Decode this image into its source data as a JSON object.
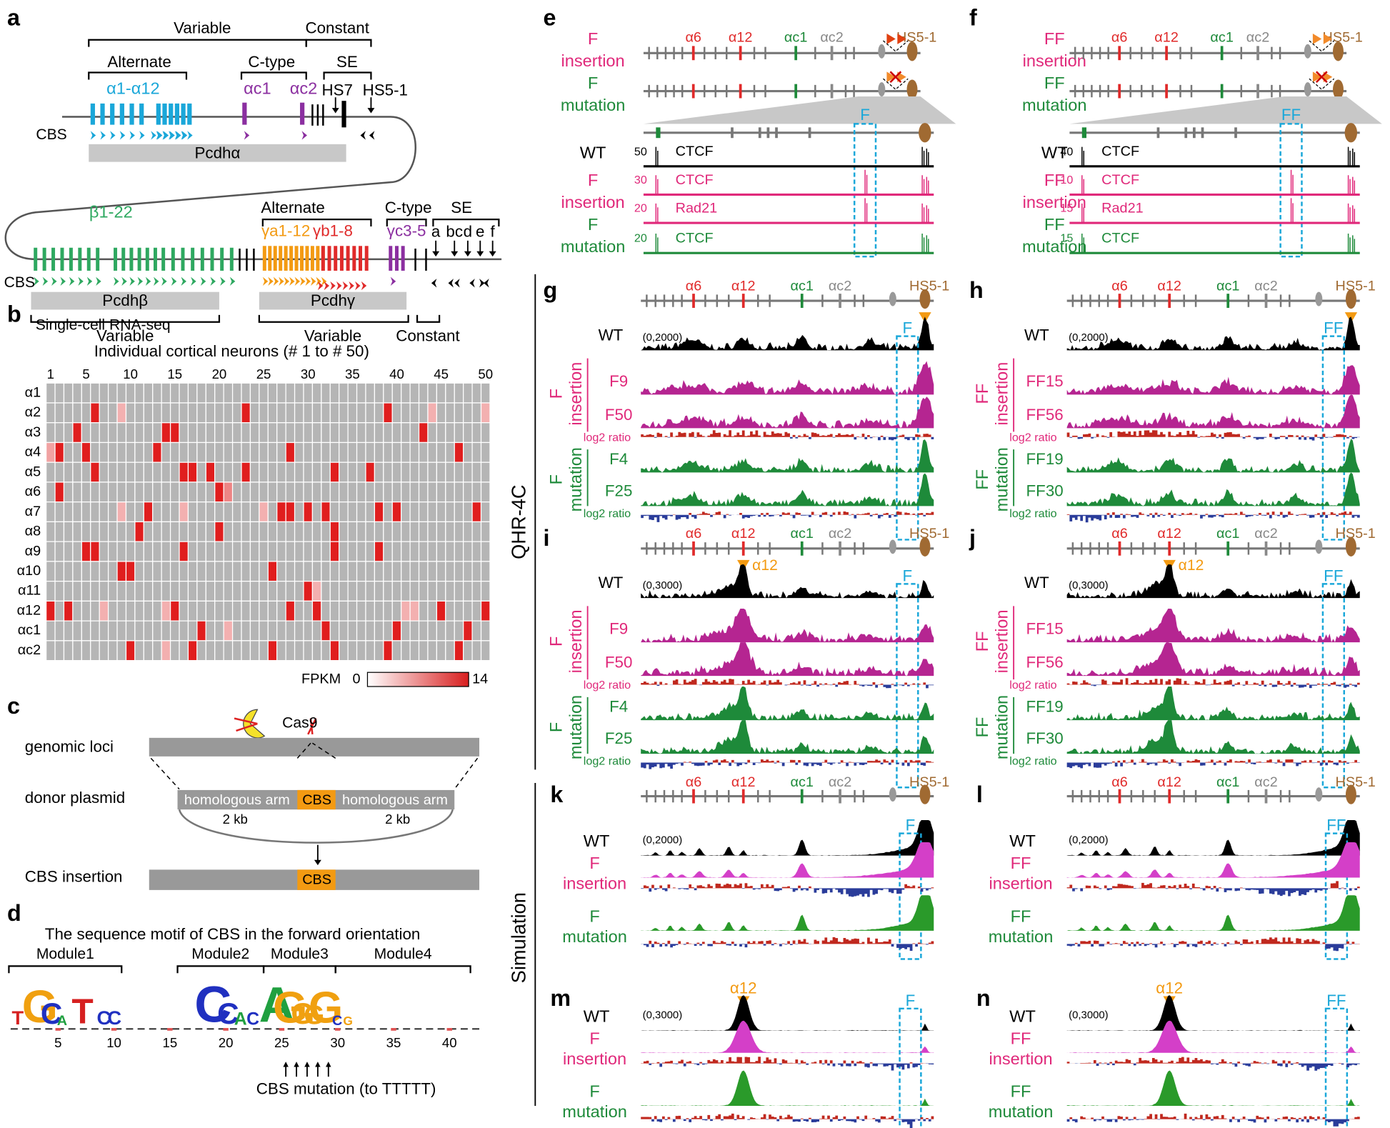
{
  "panel_labels": [
    "a",
    "b",
    "c",
    "d",
    "e",
    "f",
    "g",
    "h",
    "i",
    "j",
    "k",
    "l",
    "m",
    "n"
  ],
  "side_labels": [
    "QHR-4C",
    "Simulation"
  ],
  "a": {
    "variable": "Variable",
    "constant": "Constant",
    "alternate": "Alternate",
    "c_type": "C-type",
    "se": "SE",
    "alpha_alt": "α1-α12",
    "alpha_c1": "αc1",
    "alpha_c2": "αc2",
    "hs7": "HS7",
    "hs5_1": "HS5-1",
    "cbs": "CBS",
    "pcdha": "Pcdhα",
    "beta": "β1-22",
    "gamma_a": "γa1-12",
    "gamma_b": "γb1-8",
    "gamma_c": "γc3-5",
    "se_sites": [
      "a",
      "bc",
      "d",
      "e",
      "f"
    ],
    "pcdhb": "Pcdhβ",
    "pcdhg": "Pcdhγ"
  },
  "b": {
    "title": "Single-cell RNA-seq",
    "subtitle": "Individual cortical neurons (# 1 to # 50)",
    "column_ticks": [
      1,
      5,
      10,
      15,
      20,
      25,
      30,
      35,
      40,
      45,
      50
    ],
    "rows": [
      "α1",
      "α2",
      "α3",
      "α4",
      "α5",
      "α6",
      "α7",
      "α8",
      "α9",
      "α10",
      "α11",
      "α12",
      "αc1",
      "αc2"
    ],
    "values": [
      [
        0,
        0,
        0,
        0,
        0,
        0,
        0,
        0,
        0,
        0,
        0,
        0,
        0,
        0,
        0,
        0,
        0,
        0,
        0,
        0,
        0,
        0,
        0,
        0,
        0,
        0,
        0,
        0,
        0,
        0,
        0,
        0,
        0,
        0,
        0,
        0,
        0,
        0,
        0,
        0,
        0,
        0,
        0,
        0,
        0,
        0,
        0,
        0,
        0,
        0
      ],
      [
        0,
        0,
        0,
        0,
        0,
        14,
        0,
        0,
        4,
        0,
        0,
        0,
        0,
        0,
        0,
        0,
        0,
        0,
        0,
        0,
        0,
        0,
        14,
        0,
        0,
        0,
        0,
        0,
        0,
        0,
        0,
        0,
        0,
        0,
        0,
        0,
        0,
        0,
        14,
        0,
        0,
        0,
        0,
        4,
        0,
        0,
        0,
        0,
        0,
        4
      ],
      [
        0,
        0,
        0,
        14,
        0,
        0,
        0,
        0,
        0,
        0,
        0,
        0,
        0,
        14,
        14,
        0,
        0,
        0,
        0,
        0,
        0,
        0,
        0,
        0,
        0,
        0,
        0,
        0,
        0,
        0,
        0,
        0,
        0,
        0,
        0,
        0,
        0,
        0,
        0,
        0,
        0,
        0,
        14,
        0,
        0,
        0,
        0,
        0,
        0,
        0
      ],
      [
        5,
        14,
        0,
        0,
        14,
        0,
        0,
        0,
        0,
        0,
        0,
        0,
        14,
        0,
        0,
        0,
        0,
        0,
        0,
        0,
        0,
        0,
        0,
        0,
        0,
        0,
        0,
        14,
        0,
        0,
        0,
        0,
        0,
        0,
        0,
        0,
        0,
        0,
        0,
        0,
        0,
        0,
        0,
        0,
        0,
        0,
        14,
        0,
        0,
        0
      ],
      [
        0,
        0,
        0,
        0,
        0,
        14,
        0,
        0,
        0,
        0,
        0,
        0,
        0,
        0,
        0,
        14,
        14,
        0,
        14,
        0,
        0,
        0,
        14,
        0,
        0,
        0,
        0,
        0,
        0,
        0,
        0,
        0,
        14,
        0,
        0,
        0,
        14,
        0,
        0,
        0,
        0,
        0,
        0,
        0,
        0,
        0,
        0,
        0,
        0,
        0
      ],
      [
        0,
        14,
        0,
        0,
        0,
        0,
        0,
        0,
        0,
        0,
        0,
        0,
        0,
        0,
        0,
        0,
        0,
        0,
        0,
        14,
        7,
        0,
        0,
        0,
        0,
        0,
        0,
        0,
        0,
        0,
        0,
        0,
        0,
        0,
        0,
        0,
        0,
        0,
        0,
        0,
        0,
        0,
        0,
        0,
        0,
        0,
        0,
        0,
        0,
        0
      ],
      [
        0,
        0,
        0,
        0,
        0,
        0,
        0,
        0,
        4,
        0,
        0,
        14,
        0,
        0,
        0,
        4,
        0,
        0,
        0,
        0,
        0,
        0,
        0,
        0,
        4,
        0,
        14,
        14,
        0,
        14,
        0,
        14,
        0,
        0,
        0,
        0,
        0,
        14,
        0,
        14,
        0,
        0,
        0,
        0,
        0,
        0,
        0,
        0,
        14,
        0
      ],
      [
        0,
        0,
        0,
        0,
        0,
        0,
        0,
        0,
        0,
        0,
        14,
        0,
        0,
        0,
        0,
        0,
        0,
        0,
        0,
        14,
        0,
        0,
        0,
        0,
        0,
        0,
        0,
        0,
        0,
        0,
        0,
        0,
        14,
        0,
        0,
        0,
        0,
        0,
        0,
        0,
        0,
        0,
        0,
        0,
        0,
        0,
        0,
        0,
        0,
        0
      ],
      [
        0,
        0,
        0,
        0,
        14,
        14,
        0,
        0,
        0,
        0,
        0,
        0,
        0,
        0,
        0,
        14,
        0,
        0,
        0,
        0,
        0,
        0,
        0,
        0,
        0,
        0,
        0,
        0,
        0,
        0,
        0,
        0,
        14,
        0,
        0,
        0,
        0,
        14,
        0,
        0,
        0,
        0,
        0,
        0,
        0,
        0,
        0,
        0,
        0,
        0
      ],
      [
        0,
        0,
        0,
        0,
        0,
        0,
        0,
        0,
        14,
        14,
        0,
        0,
        0,
        0,
        0,
        0,
        0,
        0,
        0,
        0,
        0,
        0,
        0,
        0,
        0,
        14,
        0,
        0,
        0,
        0,
        0,
        0,
        0,
        0,
        0,
        0,
        0,
        0,
        0,
        0,
        0,
        0,
        0,
        0,
        0,
        0,
        0,
        0,
        0,
        0
      ],
      [
        0,
        0,
        0,
        0,
        0,
        0,
        0,
        0,
        0,
        0,
        0,
        0,
        0,
        0,
        0,
        0,
        0,
        0,
        0,
        0,
        0,
        0,
        0,
        0,
        0,
        0,
        0,
        0,
        0,
        14,
        4,
        0,
        0,
        0,
        0,
        0,
        0,
        0,
        0,
        0,
        0,
        0,
        0,
        0,
        0,
        0,
        0,
        0,
        0,
        0
      ],
      [
        14,
        0,
        14,
        0,
        0,
        0,
        4,
        0,
        0,
        0,
        0,
        0,
        0,
        4,
        14,
        0,
        0,
        0,
        0,
        0,
        0,
        0,
        0,
        0,
        0,
        0,
        0,
        14,
        0,
        0,
        14,
        0,
        0,
        0,
        0,
        0,
        0,
        0,
        0,
        0,
        4,
        4,
        0,
        0,
        14,
        0,
        0,
        0,
        0,
        14
      ],
      [
        0,
        0,
        0,
        0,
        0,
        0,
        0,
        0,
        0,
        0,
        0,
        0,
        0,
        0,
        0,
        0,
        0,
        14,
        0,
        0,
        4,
        0,
        0,
        0,
        0,
        0,
        0,
        0,
        0,
        0,
        0,
        14,
        0,
        0,
        0,
        0,
        0,
        0,
        0,
        14,
        0,
        0,
        0,
        0,
        0,
        0,
        0,
        14,
        0,
        0
      ],
      [
        0,
        0,
        0,
        0,
        0,
        0,
        0,
        0,
        0,
        14,
        0,
        0,
        0,
        4,
        0,
        0,
        14,
        0,
        0,
        0,
        0,
        0,
        0,
        0,
        0,
        14,
        0,
        0,
        0,
        0,
        0,
        0,
        14,
        0,
        0,
        0,
        0,
        0,
        14,
        0,
        0,
        0,
        0,
        0,
        0,
        0,
        14,
        0,
        0,
        0
      ]
    ],
    "colorbar": {
      "label": "FPKM",
      "min": 0,
      "max": 14
    }
  },
  "c": {
    "cas9": "Cas9",
    "genomic_loci": "genomic loci",
    "donor_plasmid": "donor plasmid",
    "homologous_arm": "homologous arm",
    "cbs": "CBS",
    "arm_length": "2 kb",
    "cbs_insertion": "CBS insertion"
  },
  "d": {
    "title": "The sequence motif of CBS in the forward orientation",
    "modules": [
      "Module1",
      "Module2",
      "Module3",
      "Module4"
    ],
    "logo": [
      "T",
      "G",
      "C",
      "A",
      "T",
      "C",
      "C",
      "C",
      "C",
      "A",
      "C",
      "A",
      "G",
      "G",
      "G",
      "G",
      "C",
      "G"
    ],
    "xticks": [
      5,
      10,
      15,
      20,
      25,
      30,
      35,
      40
    ],
    "mutation": "CBS mutation (to TTTTT)"
  },
  "e": {
    "genes": [
      "α6",
      "α12",
      "αc1",
      "αc2",
      "HS5-1"
    ],
    "top_rows": [
      "F",
      "insertion",
      "F",
      "mutation"
    ],
    "site": "F",
    "wt": "WT",
    "tracks": [
      {
        "scale": 50,
        "name": "CTCF"
      },
      {
        "scale": 30,
        "name": "CTCF"
      },
      {
        "scale": 20,
        "name": "Rad21"
      },
      {
        "scale": 20,
        "name": "CTCF"
      }
    ],
    "track_rows": [
      "F",
      "insertion",
      "F",
      "mutation"
    ]
  },
  "f": {
    "genes": [
      "α6",
      "α12",
      "αc1",
      "αc2",
      "HS5-1"
    ],
    "top_rows": [
      "FF",
      "insertion",
      "FF",
      "mutation"
    ],
    "site": "FF",
    "wt": "WT",
    "tracks": [
      {
        "scale": 40,
        "name": "CTCF"
      },
      {
        "scale": 10,
        "name": "CTCF"
      },
      {
        "scale": 15,
        "name": "Rad21"
      },
      {
        "scale": 15,
        "name": "CTCF"
      }
    ],
    "track_rows": [
      "FF",
      "insertion",
      "FF",
      "mutation"
    ]
  },
  "g": {
    "genes": [
      "α6",
      "α12",
      "αc1",
      "αc2",
      "HS5-1"
    ],
    "wt": "WT",
    "scale": "(0,2000)",
    "site": "F",
    "insertion": [
      "F",
      "insertion"
    ],
    "ins_samples": [
      "F9",
      "F50"
    ],
    "mutation": [
      "F",
      "mutation"
    ],
    "mut_samples": [
      "F4",
      "F25"
    ],
    "log2": "log2 ratio"
  },
  "h": {
    "genes": [
      "α6",
      "α12",
      "αc1",
      "αc2",
      "HS5-1"
    ],
    "wt": "WT",
    "scale": "(0,2000)",
    "site": "FF",
    "insertion": [
      "FF",
      "insertion"
    ],
    "ins_samples": [
      "FF15",
      "FF56"
    ],
    "mutation": [
      "FF",
      "mutation"
    ],
    "mut_samples": [
      "FF19",
      "FF30"
    ],
    "log2": "log2 ratio"
  },
  "i": {
    "genes": [
      "α6",
      "α12",
      "αc1",
      "αc2",
      "HS5-1"
    ],
    "wt": "WT",
    "scale": "(0,3000)",
    "site": "F",
    "marker": "α12",
    "insertion": [
      "F",
      "insertion"
    ],
    "ins_samples": [
      "F9",
      "F50"
    ],
    "mutation": [
      "F",
      "mutation"
    ],
    "mut_samples": [
      "F4",
      "F25"
    ],
    "log2": "log2 ratio"
  },
  "j": {
    "genes": [
      "α6",
      "α12",
      "αc1",
      "αc2",
      "HS5-1"
    ],
    "wt": "WT",
    "scale": "(0,3000)",
    "site": "FF",
    "marker": "α12",
    "insertion": [
      "FF",
      "insertion"
    ],
    "ins_samples": [
      "FF15",
      "FF56"
    ],
    "mutation": [
      "FF",
      "mutation"
    ],
    "mut_samples": [
      "FF19",
      "FF30"
    ],
    "log2": "log2 ratio"
  },
  "k": {
    "genes": [
      "α6",
      "α12",
      "αc1",
      "αc2",
      "HS5-1"
    ],
    "wt": "WT",
    "scale": "(0,2000)",
    "site": "F",
    "insertion": [
      "F",
      "insertion"
    ],
    "mutation": [
      "F",
      "mutation"
    ]
  },
  "l": {
    "genes": [
      "α6",
      "α12",
      "αc1",
      "αc2",
      "HS5-1"
    ],
    "wt": "WT",
    "scale": "(0,2000)",
    "site": "FF",
    "insertion": [
      "FF",
      "insertion"
    ],
    "mutation": [
      "FF",
      "mutation"
    ]
  },
  "m": {
    "wt": "WT",
    "scale": "(0,3000)",
    "site": "F",
    "marker": "α12",
    "insertion": [
      "F",
      "insertion"
    ],
    "mutation": [
      "F",
      "mutation"
    ]
  },
  "n": {
    "wt": "WT",
    "scale": "(0,3000)",
    "site": "FF",
    "marker": "α12",
    "insertion": [
      "FF",
      "insertion"
    ],
    "mutation": [
      "FF",
      "mutation"
    ]
  }
}
